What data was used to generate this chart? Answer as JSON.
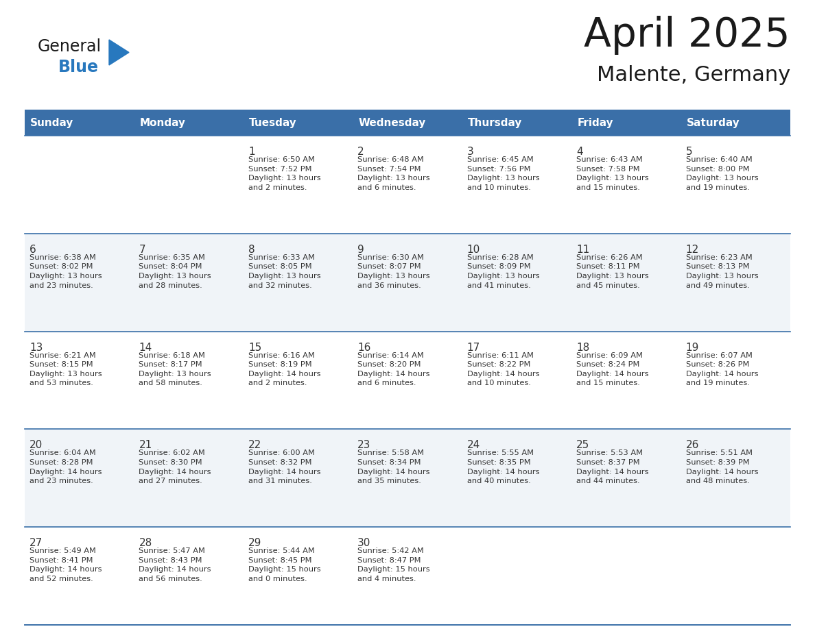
{
  "title": "April 2025",
  "subtitle": "Malente, Germany",
  "header_color": "#3a6fa8",
  "header_text_color": "#ffffff",
  "cell_bg_light": "#f0f4f8",
  "cell_bg_white": "#ffffff",
  "border_color": "#3a6fa8",
  "text_color": "#333333",
  "days_of_week": [
    "Sunday",
    "Monday",
    "Tuesday",
    "Wednesday",
    "Thursday",
    "Friday",
    "Saturday"
  ],
  "weeks": [
    [
      {
        "day": "",
        "info": ""
      },
      {
        "day": "",
        "info": ""
      },
      {
        "day": "1",
        "info": "Sunrise: 6:50 AM\nSunset: 7:52 PM\nDaylight: 13 hours\nand 2 minutes."
      },
      {
        "day": "2",
        "info": "Sunrise: 6:48 AM\nSunset: 7:54 PM\nDaylight: 13 hours\nand 6 minutes."
      },
      {
        "day": "3",
        "info": "Sunrise: 6:45 AM\nSunset: 7:56 PM\nDaylight: 13 hours\nand 10 minutes."
      },
      {
        "day": "4",
        "info": "Sunrise: 6:43 AM\nSunset: 7:58 PM\nDaylight: 13 hours\nand 15 minutes."
      },
      {
        "day": "5",
        "info": "Sunrise: 6:40 AM\nSunset: 8:00 PM\nDaylight: 13 hours\nand 19 minutes."
      }
    ],
    [
      {
        "day": "6",
        "info": "Sunrise: 6:38 AM\nSunset: 8:02 PM\nDaylight: 13 hours\nand 23 minutes."
      },
      {
        "day": "7",
        "info": "Sunrise: 6:35 AM\nSunset: 8:04 PM\nDaylight: 13 hours\nand 28 minutes."
      },
      {
        "day": "8",
        "info": "Sunrise: 6:33 AM\nSunset: 8:05 PM\nDaylight: 13 hours\nand 32 minutes."
      },
      {
        "day": "9",
        "info": "Sunrise: 6:30 AM\nSunset: 8:07 PM\nDaylight: 13 hours\nand 36 minutes."
      },
      {
        "day": "10",
        "info": "Sunrise: 6:28 AM\nSunset: 8:09 PM\nDaylight: 13 hours\nand 41 minutes."
      },
      {
        "day": "11",
        "info": "Sunrise: 6:26 AM\nSunset: 8:11 PM\nDaylight: 13 hours\nand 45 minutes."
      },
      {
        "day": "12",
        "info": "Sunrise: 6:23 AM\nSunset: 8:13 PM\nDaylight: 13 hours\nand 49 minutes."
      }
    ],
    [
      {
        "day": "13",
        "info": "Sunrise: 6:21 AM\nSunset: 8:15 PM\nDaylight: 13 hours\nand 53 minutes."
      },
      {
        "day": "14",
        "info": "Sunrise: 6:18 AM\nSunset: 8:17 PM\nDaylight: 13 hours\nand 58 minutes."
      },
      {
        "day": "15",
        "info": "Sunrise: 6:16 AM\nSunset: 8:19 PM\nDaylight: 14 hours\nand 2 minutes."
      },
      {
        "day": "16",
        "info": "Sunrise: 6:14 AM\nSunset: 8:20 PM\nDaylight: 14 hours\nand 6 minutes."
      },
      {
        "day": "17",
        "info": "Sunrise: 6:11 AM\nSunset: 8:22 PM\nDaylight: 14 hours\nand 10 minutes."
      },
      {
        "day": "18",
        "info": "Sunrise: 6:09 AM\nSunset: 8:24 PM\nDaylight: 14 hours\nand 15 minutes."
      },
      {
        "day": "19",
        "info": "Sunrise: 6:07 AM\nSunset: 8:26 PM\nDaylight: 14 hours\nand 19 minutes."
      }
    ],
    [
      {
        "day": "20",
        "info": "Sunrise: 6:04 AM\nSunset: 8:28 PM\nDaylight: 14 hours\nand 23 minutes."
      },
      {
        "day": "21",
        "info": "Sunrise: 6:02 AM\nSunset: 8:30 PM\nDaylight: 14 hours\nand 27 minutes."
      },
      {
        "day": "22",
        "info": "Sunrise: 6:00 AM\nSunset: 8:32 PM\nDaylight: 14 hours\nand 31 minutes."
      },
      {
        "day": "23",
        "info": "Sunrise: 5:58 AM\nSunset: 8:34 PM\nDaylight: 14 hours\nand 35 minutes."
      },
      {
        "day": "24",
        "info": "Sunrise: 5:55 AM\nSunset: 8:35 PM\nDaylight: 14 hours\nand 40 minutes."
      },
      {
        "day": "25",
        "info": "Sunrise: 5:53 AM\nSunset: 8:37 PM\nDaylight: 14 hours\nand 44 minutes."
      },
      {
        "day": "26",
        "info": "Sunrise: 5:51 AM\nSunset: 8:39 PM\nDaylight: 14 hours\nand 48 minutes."
      }
    ],
    [
      {
        "day": "27",
        "info": "Sunrise: 5:49 AM\nSunset: 8:41 PM\nDaylight: 14 hours\nand 52 minutes."
      },
      {
        "day": "28",
        "info": "Sunrise: 5:47 AM\nSunset: 8:43 PM\nDaylight: 14 hours\nand 56 minutes."
      },
      {
        "day": "29",
        "info": "Sunrise: 5:44 AM\nSunset: 8:45 PM\nDaylight: 15 hours\nand 0 minutes."
      },
      {
        "day": "30",
        "info": "Sunrise: 5:42 AM\nSunset: 8:47 PM\nDaylight: 15 hours\nand 4 minutes."
      },
      {
        "day": "",
        "info": ""
      },
      {
        "day": "",
        "info": ""
      },
      {
        "day": "",
        "info": ""
      }
    ]
  ],
  "logo_text1": "General",
  "logo_text2": "Blue",
  "logo_color_general": "#1a1a1a",
  "logo_color_blue": "#2878be",
  "logo_triangle_color": "#2878be",
  "title_color": "#1a1a1a",
  "subtitle_color": "#1a1a1a"
}
